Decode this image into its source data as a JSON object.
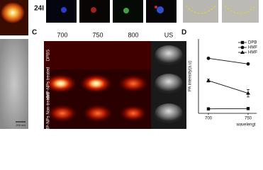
{
  "panels": {
    "time_label": "24I",
    "scale_bar": "200 nm",
    "panel_c": "C",
    "panel_d": "D",
    "columns": [
      "700",
      "750",
      "800",
      "US"
    ],
    "rows": [
      "DPBS",
      "HMP-NPs treated",
      "HMP-NPs Non-treated"
    ]
  },
  "chart_data": {
    "type": "line",
    "x_label": "wavelengt",
    "y_label": "PA intensity(a.u)",
    "categories": [
      "700",
      "750"
    ],
    "ylim": [
      0,
      500
    ],
    "series": [
      {
        "name": "DPB",
        "color": "#111111",
        "marker": "square",
        "values": [
          30,
          32
        ]
      },
      {
        "name": "HMF",
        "color": "#111111",
        "marker": "circle",
        "values": [
          370,
          332
        ]
      },
      {
        "name": "HMF",
        "color": "#111111",
        "marker": "triangle",
        "values": [
          220,
          135
        ],
        "errors": [
          10,
          25
        ]
      }
    ]
  }
}
